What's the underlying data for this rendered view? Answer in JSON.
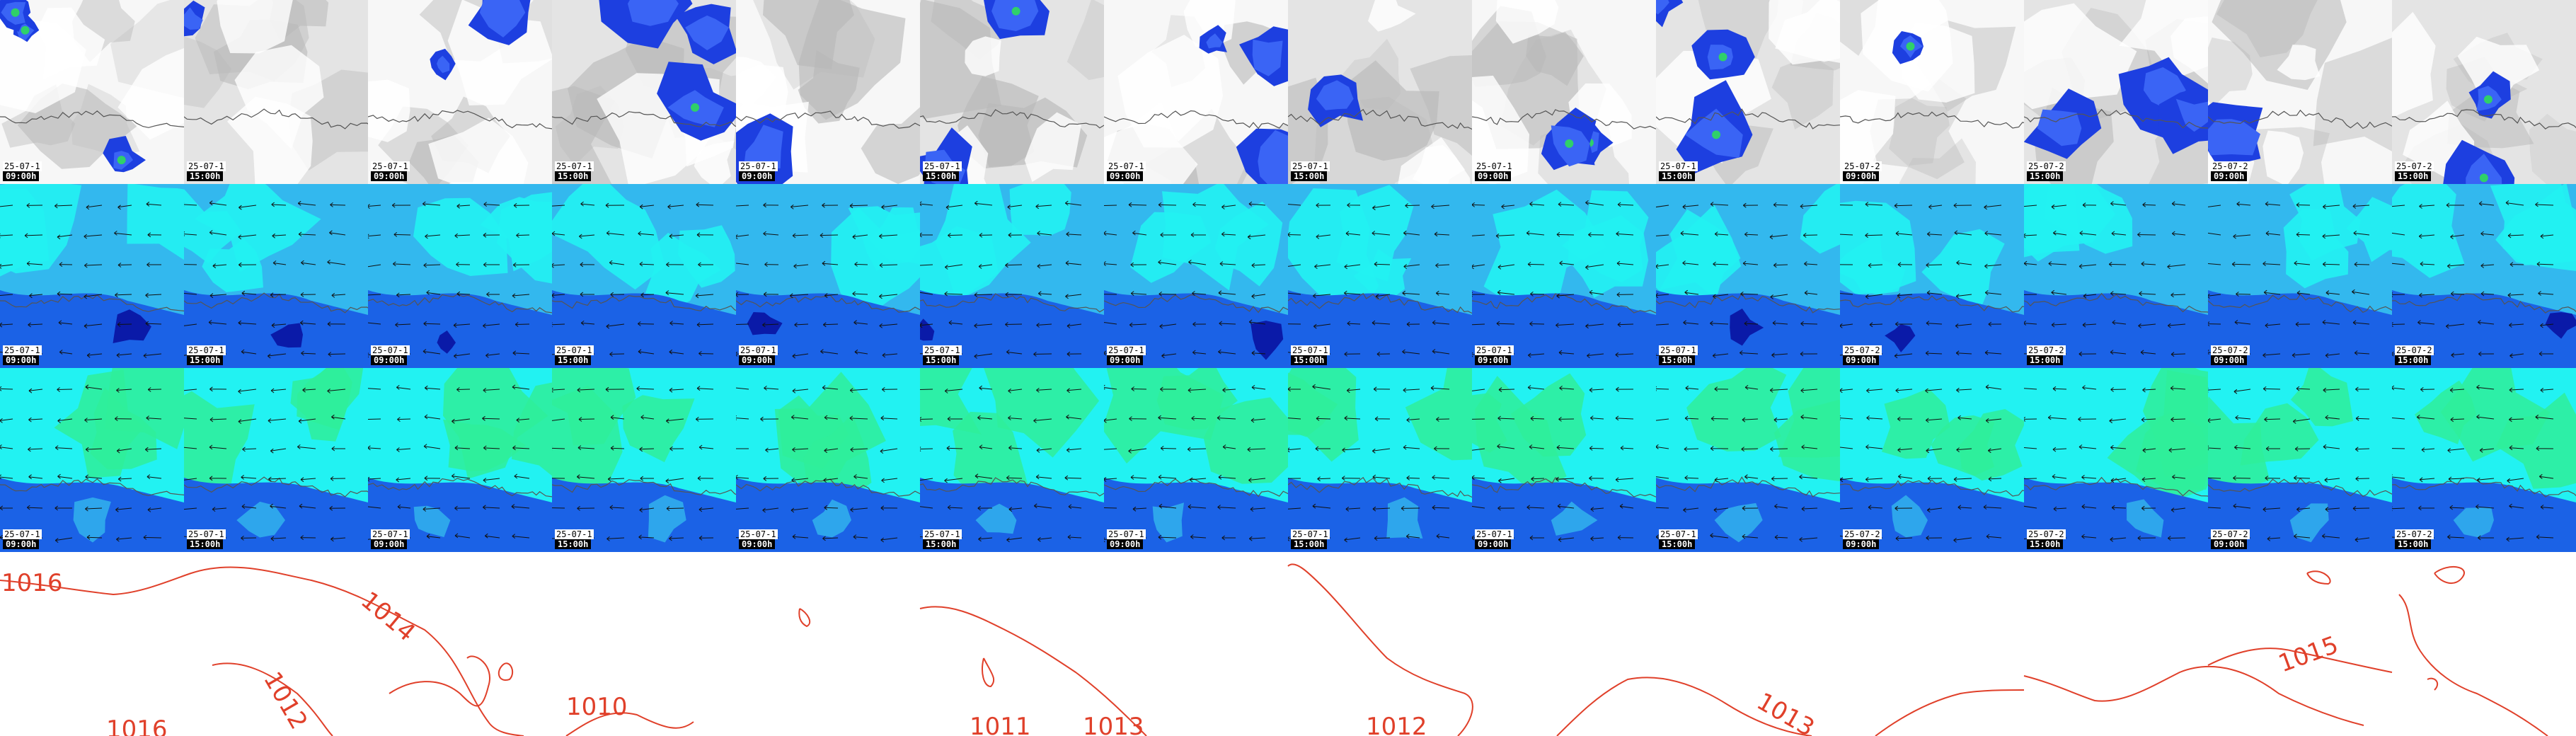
{
  "title": "",
  "colors": {
    "cloud_light": "#f2f2f2",
    "cloud_grey": "#b8b8b8",
    "precip_blue": "#1d3fe0",
    "precip_blue_light": "#3a64f5",
    "precip_green": "#2fd06a",
    "wind_sky": "#33b8ee",
    "wind_cyan": "#22f2f2",
    "wind_blue": "#1b62e6",
    "wind_navy": "#0a1aa8",
    "gust_green": "#2fee9a",
    "isobar_red": "#e0402a",
    "coastline": "#555555",
    "arrow": "#111111"
  },
  "rows": [
    {
      "id": "cloud-precip",
      "label": ""
    },
    {
      "id": "wind",
      "label": ""
    },
    {
      "id": "gusts",
      "label": ""
    }
  ],
  "frames": [
    {
      "date": "25-07-1",
      "time": "09:00h"
    },
    {
      "date": "25-07-1",
      "time": "15:00h"
    },
    {
      "date": "25-07-1",
      "time": "09:00h"
    },
    {
      "date": "25-07-1",
      "time": "15:00h"
    },
    {
      "date": "25-07-1",
      "time": "09:00h"
    },
    {
      "date": "25-07-1",
      "time": "15:00h"
    },
    {
      "date": "25-07-1",
      "time": "09:00h"
    },
    {
      "date": "25-07-1",
      "time": "15:00h"
    },
    {
      "date": "25-07-1",
      "time": "09:00h"
    },
    {
      "date": "25-07-1",
      "time": "15:00h"
    },
    {
      "date": "25-07-2",
      "time": "09:00h"
    },
    {
      "date": "25-07-2",
      "time": "15:00h"
    },
    {
      "date": "25-07-2",
      "time": "09:00h"
    },
    {
      "date": "25-07-2",
      "time": "15:00h"
    }
  ],
  "isobar_labels": [
    "1016",
    "1014",
    "1012",
    "1016",
    "1010",
    "1011",
    "1013",
    "1012",
    "1013",
    "1015"
  ]
}
